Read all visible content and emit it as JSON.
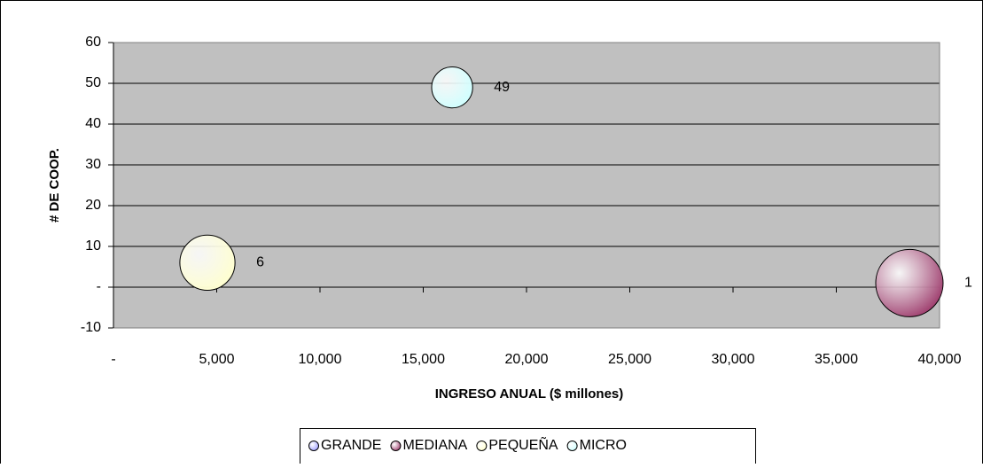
{
  "chart_data": {
    "type": "bubble",
    "xlabel": "INGRESO ANUAL ($ millones)",
    "ylabel": "# DE COOP.",
    "xlim": [
      0,
      40000
    ],
    "xticks": [
      {
        "value": 0,
        "label": "-"
      },
      {
        "value": 5000,
        "label": "5,000"
      },
      {
        "value": 10000,
        "label": "10,000"
      },
      {
        "value": 15000,
        "label": "15,000"
      },
      {
        "value": 20000,
        "label": "20,000"
      },
      {
        "value": 25000,
        "label": "25,000"
      },
      {
        "value": 30000,
        "label": "30,000"
      },
      {
        "value": 35000,
        "label": "35,000"
      },
      {
        "value": 40000,
        "label": "40,000"
      }
    ],
    "ylim": [
      -10,
      60
    ],
    "yticks": [
      -10,
      {
        "value": 0,
        "label": "-"
      },
      10,
      20,
      30,
      40,
      50,
      60
    ],
    "grid": true,
    "legend": "bottom",
    "series": [
      {
        "name": "GRANDE",
        "color": "#9999ff",
        "x": [],
        "values": [],
        "sizes": []
      },
      {
        "name": "MEDIANA",
        "color": "#993366",
        "x": [
          38540
        ],
        "values": [
          1
        ],
        "sizes": [
          1.0
        ]
      },
      {
        "name": "PEQUEÑA",
        "color": "#ffffcc",
        "x": [
          4550
        ],
        "values": [
          6
        ],
        "sizes": [
          0.67
        ]
      },
      {
        "name": "MICRO",
        "color": "#ccffff",
        "x": [
          16400
        ],
        "values": [
          49
        ],
        "sizes": [
          0.37
        ]
      }
    ]
  }
}
